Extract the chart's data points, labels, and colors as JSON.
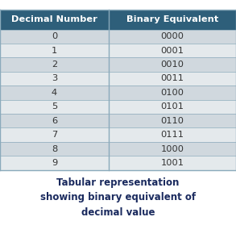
{
  "col_headers": [
    "Decimal Number",
    "Binary Equivalent"
  ],
  "rows": [
    [
      "0",
      "0000"
    ],
    [
      "1",
      "0001"
    ],
    [
      "2",
      "0010"
    ],
    [
      "3",
      "0011"
    ],
    [
      "4",
      "0100"
    ],
    [
      "5",
      "0101"
    ],
    [
      "6",
      "0110"
    ],
    [
      "7",
      "0111"
    ],
    [
      "8",
      "1000"
    ],
    [
      "9",
      "1001"
    ]
  ],
  "header_bg": "#2e5f7a",
  "header_text_color": "#ffffff",
  "row_bg_even": "#d0d8de",
  "row_bg_odd": "#e4e9ec",
  "caption": "Tabular representation\nshowing binary equivalent of\ndecimal value",
  "caption_color": "#1a2a5e",
  "border_color": "#8aaabb",
  "cell_text_color": "#333333",
  "fig_bg": "#ffffff"
}
